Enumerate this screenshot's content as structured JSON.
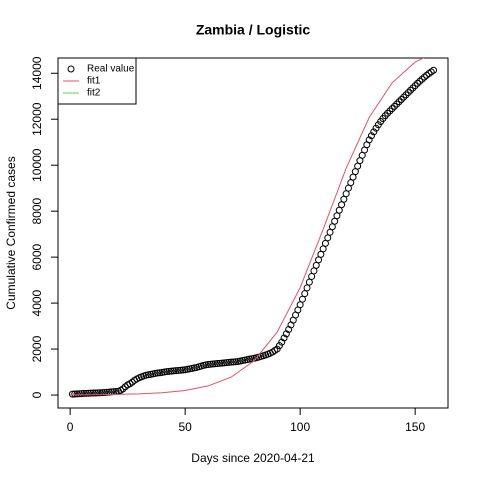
{
  "chart_data": {
    "type": "scatter",
    "title": "Zambia / Logistic",
    "x_label": "Days since 2020-04-21",
    "y_label": "Cumulative Confirmed cases",
    "xlim": [
      -5.28,
      164.28
    ],
    "ylim": [
      -564,
      14664
    ],
    "xticks": [
      0,
      50,
      100,
      150
    ],
    "yticks": [
      0,
      2000,
      4000,
      6000,
      8000,
      10000,
      12000,
      14000
    ],
    "legend": "top-left",
    "x": [
      1,
      2,
      3,
      4,
      5,
      6,
      7,
      8,
      9,
      10,
      11,
      12,
      13,
      14,
      15,
      16,
      17,
      18,
      19,
      20,
      21,
      22,
      23,
      24,
      25,
      26,
      27,
      28,
      29,
      30,
      31,
      32,
      33,
      34,
      35,
      36,
      37,
      38,
      39,
      40,
      41,
      42,
      43,
      44,
      45,
      46,
      47,
      48,
      49,
      50,
      51,
      52,
      53,
      54,
      55,
      56,
      57,
      58,
      59,
      60,
      61,
      62,
      63,
      64,
      65,
      66,
      67,
      68,
      69,
      70,
      71,
      72,
      73,
      74,
      75,
      76,
      77,
      78,
      79,
      80,
      81,
      82,
      83,
      84,
      85,
      86,
      87,
      88,
      89,
      90,
      91,
      92,
      93,
      94,
      95,
      96,
      97,
      98,
      99,
      100,
      101,
      102,
      103,
      104,
      105,
      106,
      107,
      108,
      109,
      110,
      111,
      112,
      113,
      114,
      115,
      116,
      117,
      118,
      119,
      120,
      121,
      122,
      123,
      124,
      125,
      126,
      127,
      128,
      129,
      130,
      131,
      132,
      133,
      134,
      135,
      136,
      137,
      138,
      139,
      140,
      141,
      142,
      143,
      144,
      145,
      146,
      147,
      148,
      149,
      150,
      151,
      152,
      153,
      154,
      155,
      156,
      157,
      158
    ],
    "series": [
      {
        "name": "Real value",
        "color": "#000000",
        "values": [
          39,
          45,
          52,
          57,
          61,
          70,
          74,
          76,
          84,
          88,
          89,
          95,
          97,
          106,
          109,
          119,
          124,
          137,
          146,
          153,
          167,
          204,
          267,
          361,
          441,
          490,
          560,
          640,
          700,
          750,
          790,
          830,
          860,
          880,
          900,
          920,
          940,
          960,
          970,
          985,
          1000,
          1020,
          1030,
          1040,
          1050,
          1060,
          1070,
          1080,
          1090,
          1100,
          1120,
          1140,
          1160,
          1180,
          1200,
          1230,
          1260,
          1290,
          1310,
          1330,
          1340,
          1350,
          1360,
          1370,
          1380,
          1390,
          1400,
          1410,
          1420,
          1430,
          1440,
          1450,
          1460,
          1480,
          1500,
          1520,
          1540,
          1560,
          1580,
          1600,
          1620,
          1650,
          1680,
          1710,
          1740,
          1780,
          1820,
          1870,
          1940,
          2000,
          2150,
          2300,
          2480,
          2660,
          2850,
          3050,
          3260,
          3480,
          3700,
          3930,
          4170,
          4410,
          4660,
          4910,
          5160,
          5400,
          5640,
          5880,
          6120,
          6360,
          6600,
          6840,
          7080,
          7320,
          7560,
          7800,
          8040,
          8280,
          8520,
          8760,
          9000,
          9240,
          9480,
          9720,
          9960,
          10200,
          10430,
          10660,
          10890,
          11100,
          11280,
          11450,
          11610,
          11760,
          11900,
          12030,
          12150,
          12260,
          12360,
          12460,
          12560,
          12660,
          12760,
          12860,
          12960,
          13060,
          13160,
          13260,
          13360,
          13460,
          13560,
          13650,
          13740,
          13830,
          13910,
          13990,
          14060,
          14130
        ]
      },
      {
        "name": "fit1",
        "color": "#df536b",
        "x": [
          0,
          10,
          20,
          30,
          40,
          50,
          60,
          70,
          80,
          90,
          100,
          110,
          120,
          130,
          140,
          150,
          160,
          165
        ],
        "values": [
          6,
          12,
          25,
          51,
          100,
          199,
          397,
          780,
          1492,
          2739,
          4674,
          7209,
          9866,
          12074,
          13586,
          14487,
          14980,
          15130
        ]
      },
      {
        "name": "fit2",
        "color": "#61d04f",
        "x": [
          0,
          10,
          20,
          30,
          40,
          50,
          60,
          70,
          80,
          90,
          100,
          110,
          120,
          130,
          140,
          150,
          160,
          165
        ],
        "values": [
          null,
          null,
          null,
          null,
          null,
          null,
          null,
          null,
          null,
          null,
          null,
          null,
          null,
          null,
          null,
          null,
          null,
          null
        ]
      }
    ]
  }
}
